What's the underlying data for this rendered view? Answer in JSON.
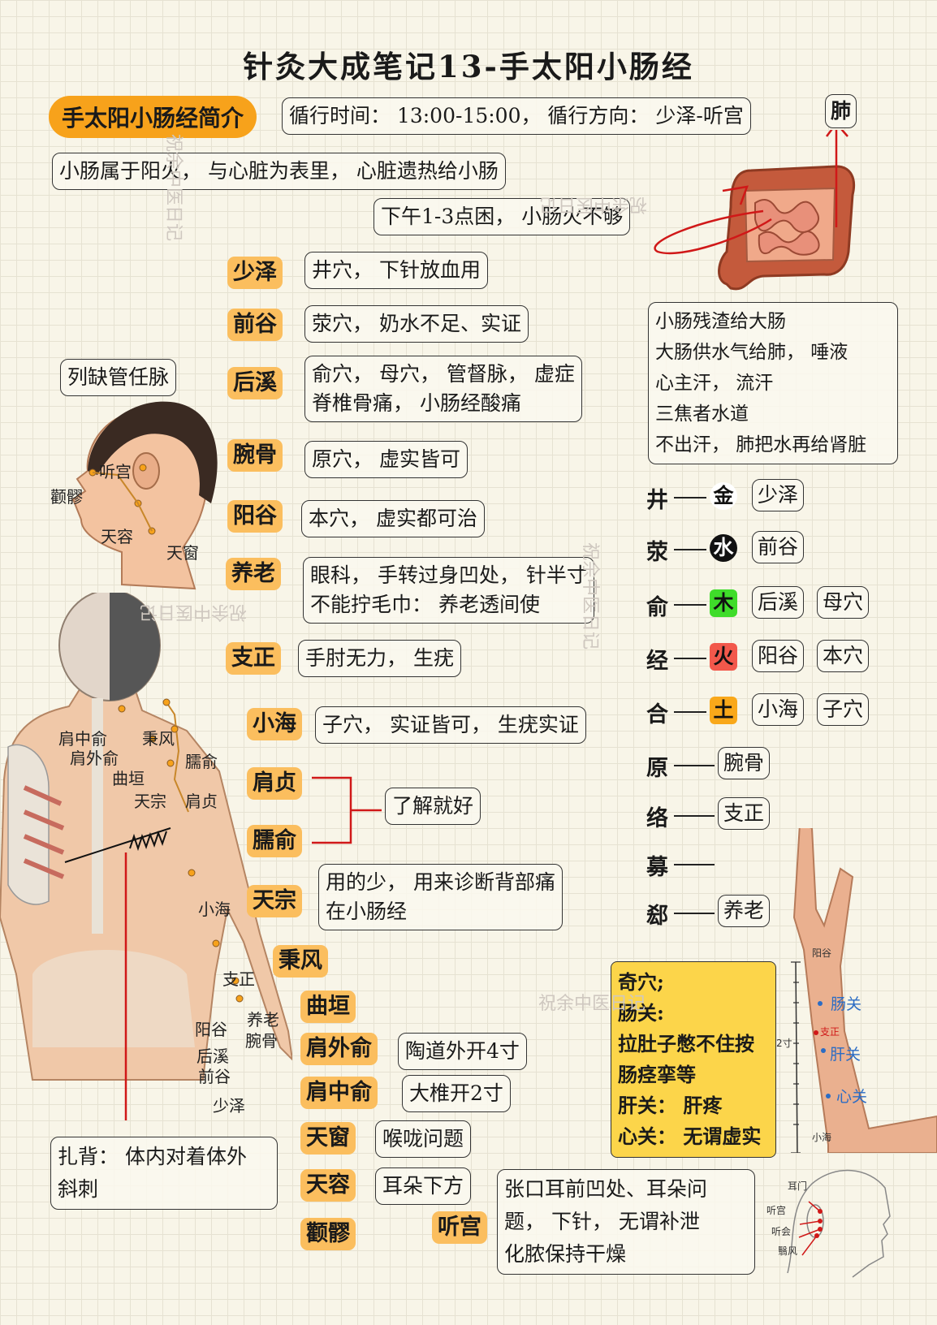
{
  "title": "针灸大成笔记13-手太阳小肠经",
  "intro": {
    "pill": "手太阳小肠经简介",
    "schedule": "循行时间：  13:00-15:00，  循行方向：  少泽-听宫",
    "relation": "小肠属于阳火，  与心脏为表里，  心脏遗热给小肠",
    "afternoon": "下午1-3点困，  小肠火不够",
    "lung_label": "肺"
  },
  "note_lieque": "列缺管任脉",
  "large_intestine_notes": [
    "小肠残渣给大肠",
    "大肠供水气给肺，  唾液",
    "心主汗，  流汗",
    "三焦者水道",
    "不出汗，  肺把水再给肾脏"
  ],
  "points": [
    {
      "name": "少泽",
      "desc": [
        "井穴，  下针放血用"
      ]
    },
    {
      "name": "前谷",
      "desc": [
        "荥穴，  奶水不足、实证"
      ]
    },
    {
      "name": "后溪",
      "desc": [
        "俞穴，  母穴，  管督脉，  虚症",
        "脊椎骨痛，  小肠经酸痛"
      ]
    },
    {
      "name": "腕骨",
      "desc": [
        "原穴，  虚实皆可"
      ]
    },
    {
      "name": "阳谷",
      "desc": [
        "本穴，  虚实都可治"
      ]
    },
    {
      "name": "养老",
      "desc": [
        "眼科，  手转过身凹处，  针半寸",
        "不能拧毛巾：  养老透间使"
      ]
    },
    {
      "name": "支正",
      "desc": [
        "手肘无力，  生疣"
      ]
    },
    {
      "name": "小海",
      "desc": [
        "子穴，  实证皆可，  生疣实证"
      ]
    },
    {
      "name": "肩贞",
      "desc": []
    },
    {
      "name": "臑俞",
      "desc": []
    },
    {
      "name": "天宗",
      "desc": [
        "用的少，  用来诊断背部痛",
        "在小肠经"
      ]
    },
    {
      "name": "秉风",
      "desc": []
    },
    {
      "name": "曲垣",
      "desc": []
    },
    {
      "name": "肩外俞",
      "desc": [
        "陶道外开4寸"
      ]
    },
    {
      "name": "肩中俞",
      "desc": [
        "大椎开2寸"
      ]
    },
    {
      "name": "天窗",
      "desc": [
        "喉咙问题"
      ]
    },
    {
      "name": "天容",
      "desc": [
        "耳朵下方"
      ]
    },
    {
      "name": "颧髎",
      "desc": []
    },
    {
      "name": "听宫",
      "desc": [
        "张口耳前凹处、耳朵问",
        "题，  下针，  无谓补泄",
        "化脓保持干燥"
      ]
    }
  ],
  "bracket_note": "了解就好",
  "back_note": [
    "扎背：  体内对着体外",
    "斜刺"
  ],
  "five_shu": [
    {
      "type": "井",
      "element": "金",
      "color": "#ffffff",
      "text_color": "#111111",
      "point": "少泽",
      "extra": ""
    },
    {
      "type": "荥",
      "element": "水",
      "color": "#111111",
      "text_color": "#ffffff",
      "point": "前谷",
      "extra": ""
    },
    {
      "type": "俞",
      "element": "木",
      "color": "#3fdc2a",
      "text_color": "#111111",
      "point": "后溪",
      "extra": "母穴"
    },
    {
      "type": "经",
      "element": "火",
      "color": "#f2584b",
      "text_color": "#111111",
      "point": "阳谷",
      "extra": "本穴"
    },
    {
      "type": "合",
      "element": "土",
      "color": "#f9a81a",
      "text_color": "#111111",
      "point": "小海",
      "extra": "子穴"
    }
  ],
  "special_points": [
    {
      "type": "原",
      "point": "腕骨"
    },
    {
      "type": "络",
      "point": "支正"
    },
    {
      "type": "募",
      "point": ""
    },
    {
      "type": "郄",
      "point": "养老"
    }
  ],
  "extra_points": [
    "奇穴;",
    "肠关:",
    "拉肚子憋不住按",
    "肠痉挛等",
    "肝关：  肝疼",
    "心关：  无谓虚实"
  ],
  "arm_labels": {
    "top": "阳谷",
    "bottom": "小海",
    "zhizheng": "支正",
    "cun": "2寸",
    "changguan": "肠关",
    "ganguan": "肝关",
    "xinguan": "心关"
  },
  "head_labels": {
    "tinggong": "听宫",
    "quanliao": "颧髎",
    "tianrong": "天容",
    "tianchuang": "天窗"
  },
  "back_labels": {
    "jianzhongshu": "肩中俞",
    "bingfeng": "秉风",
    "jianwaishu": "肩外俞",
    "naoshu": "臑俞",
    "quyuan": "曲垣",
    "tianzong": "天宗",
    "jianzhen": "肩贞",
    "xiaohai": "小海",
    "zhizheng": "支正",
    "yanglao": "养老",
    "yanggu": "阳谷",
    "wangu": "腕骨",
    "houxi": "后溪",
    "qiangu": "前谷",
    "shaoze": "少泽"
  },
  "ear_labels": {
    "ermen": "耳门",
    "tinggong": "听宫",
    "tinghui": "听会",
    "yifeng": "翳风"
  },
  "watermark": "祝余中医日记",
  "colors": {
    "accent": "#f7a21b",
    "label_bg": "#fbbe5e",
    "yellow_box": "#fcd54a",
    "red_line": "#d01818"
  }
}
